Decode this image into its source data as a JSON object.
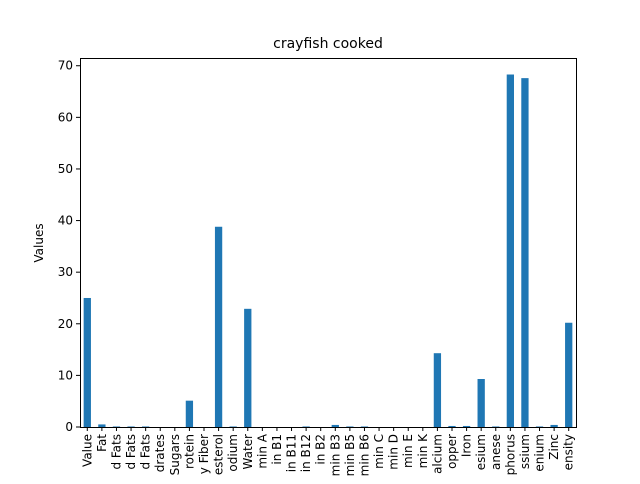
{
  "chart_data": {
    "type": "bar",
    "title": "crayfish cooked",
    "xlabel": "",
    "ylabel": "Values",
    "ylim": [
      0,
      71.5
    ],
    "yticks": [
      0,
      10,
      20,
      30,
      40,
      50,
      60,
      70
    ],
    "grid": false,
    "legend": "none",
    "bar_color": "#1f77b4",
    "categories": [
      "Value",
      "Fat",
      "d Fats",
      "d Fats",
      "d Fats",
      "drates",
      "Sugars",
      "rotein",
      "y Fiber",
      "esterol",
      "odium",
      "Water",
      "min A",
      "in B1",
      "in B11",
      "in B12",
      "in B2",
      "min B3",
      "min B5",
      "min B6",
      "min C",
      "min D",
      "min E",
      "min K",
      "alcium",
      "opper",
      "Iron",
      "esium",
      "anese",
      "phorus",
      "ssium",
      "enium",
      "Zinc",
      "ensity"
    ],
    "values": [
      25,
      0.5,
      0.1,
      0.1,
      0.1,
      0,
      0,
      5.1,
      0,
      38.8,
      0.1,
      22.9,
      0,
      0,
      0,
      0.1,
      0,
      0.4,
      0.1,
      0.1,
      0,
      0,
      0,
      0,
      14.3,
      0.2,
      0.2,
      9.3,
      0.1,
      68.3,
      67.6,
      0.1,
      0.4,
      20.2
    ]
  }
}
